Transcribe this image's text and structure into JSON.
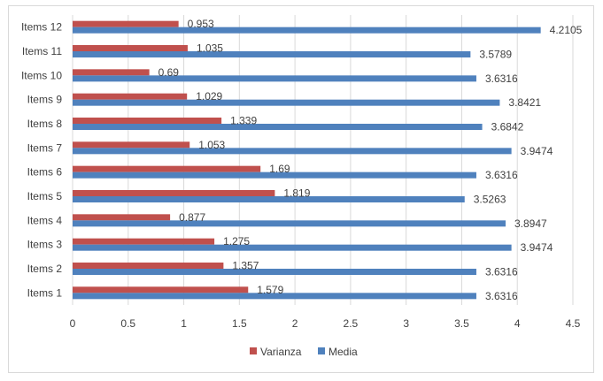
{
  "chart_data": {
    "type": "bar",
    "orientation": "horizontal",
    "categories": [
      "Items 1",
      "Items 2",
      "Items 3",
      "Items 4",
      "Items 5",
      "Items 6",
      "Items 7",
      "Items 8",
      "Items 9",
      "Items 10",
      "Items 11",
      "Items 12"
    ],
    "series": [
      {
        "name": "Varianza",
        "color": "#c0504d",
        "values": [
          1.579,
          1.357,
          1.275,
          0.877,
          1.819,
          1.69,
          1.053,
          1.339,
          1.029,
          0.69,
          1.035,
          0.953
        ],
        "labels": [
          "1.579",
          "1.357",
          "1.275",
          "0.877",
          "1.819",
          "1.69",
          "1.053",
          "1.339",
          "1.029",
          "0.69",
          "1.035",
          "0.953"
        ]
      },
      {
        "name": "Media",
        "color": "#4f81bd",
        "values": [
          3.6316,
          3.6316,
          3.9474,
          3.8947,
          3.5263,
          3.6316,
          3.9474,
          3.6842,
          3.8421,
          3.6316,
          3.5789,
          4.2105
        ],
        "labels": [
          "3.6316",
          "3.6316",
          "3.9474",
          "3.8947",
          "3.5263",
          "3.6316",
          "3.9474",
          "3.6842",
          "3.8421",
          "3.6316",
          "3.5789",
          "4.2105"
        ]
      }
    ],
    "xlim": [
      0,
      4.5
    ],
    "xticks": [
      "0",
      "0.5",
      "1",
      "1.5",
      "2",
      "2.5",
      "3",
      "3.5",
      "4",
      "4.5"
    ],
    "grid": "vertical",
    "legend_position": "bottom"
  }
}
